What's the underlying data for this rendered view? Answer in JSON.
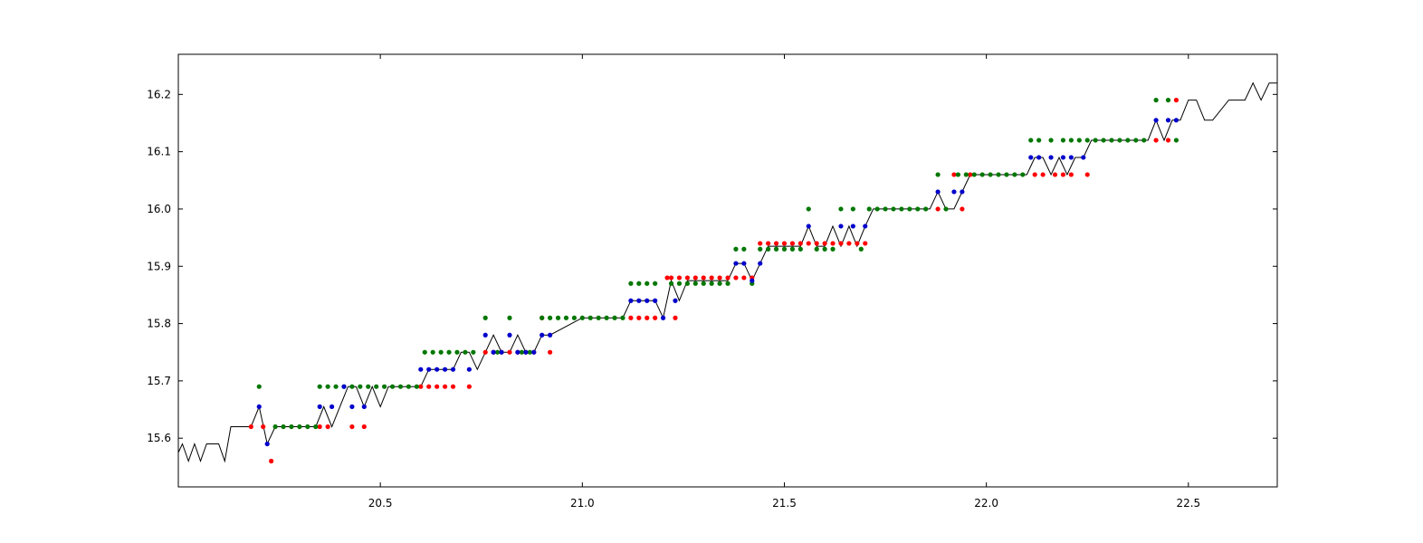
{
  "chart_data": {
    "type": "line",
    "title": "",
    "xlabel": "",
    "ylabel": "",
    "xlim": [
      20.0,
      22.72
    ],
    "ylim": [
      15.515,
      16.27
    ],
    "grid": false,
    "legend": "none",
    "x_ticks": [
      20.5,
      21.0,
      21.5,
      22.0,
      22.5
    ],
    "x_tick_labels": [
      "20.5",
      "21.0",
      "21.5",
      "22.0",
      "22.5"
    ],
    "y_ticks": [
      15.6,
      15.7,
      15.8,
      15.9,
      16.0,
      16.1,
      16.2
    ],
    "y_tick_labels": [
      "15.6",
      "15.7",
      "15.8",
      "15.9",
      "16.0",
      "16.1",
      "16.2"
    ],
    "colors": {
      "line": "#000000",
      "blue": "#0000cc",
      "red": "#ff0000",
      "green": "#007700"
    },
    "line_series": {
      "x": [
        20.0,
        20.01,
        20.025,
        20.04,
        20.055,
        20.07,
        20.085,
        20.1,
        20.115,
        20.13,
        20.145,
        20.16,
        20.18,
        20.2,
        20.22,
        20.24,
        20.26,
        20.28,
        20.3,
        20.32,
        20.34,
        20.36,
        20.38,
        20.4,
        20.42,
        20.44,
        20.46,
        20.48,
        20.5,
        20.52,
        20.54,
        20.56,
        20.58,
        20.6,
        20.62,
        20.64,
        20.66,
        20.68,
        20.7,
        20.72,
        20.74,
        20.76,
        20.78,
        20.8,
        20.82,
        20.84,
        20.86,
        20.88,
        20.9,
        20.92,
        21.0,
        21.1,
        21.12,
        21.14,
        21.16,
        21.18,
        21.2,
        21.22,
        21.24,
        21.26,
        21.3,
        21.36,
        21.38,
        21.4,
        21.42,
        21.44,
        21.46,
        21.48,
        21.52,
        21.54,
        21.56,
        21.58,
        21.6,
        21.62,
        21.64,
        21.66,
        21.68,
        21.7,
        21.72,
        21.86,
        21.88,
        21.9,
        21.92,
        21.94,
        21.96,
        22.1,
        22.12,
        22.14,
        22.16,
        22.18,
        22.2,
        22.22,
        22.24,
        22.26,
        22.4,
        22.42,
        22.44,
        22.46,
        22.48,
        22.5,
        22.52,
        22.54,
        22.56,
        22.6,
        22.64,
        22.66,
        22.68,
        22.7,
        22.72
      ],
      "y": [
        15.575,
        15.59,
        15.56,
        15.59,
        15.56,
        15.59,
        15.59,
        15.59,
        15.56,
        15.62,
        15.62,
        15.62,
        15.62,
        15.655,
        15.59,
        15.62,
        15.62,
        15.62,
        15.62,
        15.62,
        15.62,
        15.655,
        15.62,
        15.655,
        15.69,
        15.69,
        15.655,
        15.69,
        15.655,
        15.69,
        15.69,
        15.69,
        15.69,
        15.69,
        15.72,
        15.72,
        15.72,
        15.72,
        15.75,
        15.75,
        15.72,
        15.75,
        15.78,
        15.75,
        15.75,
        15.78,
        15.75,
        15.75,
        15.78,
        15.78,
        15.81,
        15.81,
        15.84,
        15.84,
        15.84,
        15.84,
        15.81,
        15.875,
        15.84,
        15.875,
        15.875,
        15.875,
        15.905,
        15.905,
        15.875,
        15.905,
        15.935,
        15.935,
        15.935,
        15.935,
        15.97,
        15.935,
        15.935,
        15.97,
        15.935,
        15.97,
        15.935,
        15.97,
        16.0,
        16.0,
        16.03,
        16.0,
        16.0,
        16.03,
        16.06,
        16.06,
        16.09,
        16.09,
        16.06,
        16.09,
        16.06,
        16.09,
        16.09,
        16.12,
        16.12,
        16.155,
        16.12,
        16.155,
        16.155,
        16.19,
        16.19,
        16.155,
        16.155,
        16.19,
        16.19,
        16.22,
        16.19,
        16.22,
        16.22
      ]
    },
    "blue_points": {
      "x": [
        20.2,
        20.22,
        20.35,
        20.38,
        20.41,
        20.43,
        20.46,
        20.6,
        20.62,
        20.64,
        20.66,
        20.68,
        20.72,
        20.76,
        20.78,
        20.8,
        20.82,
        20.84,
        20.86,
        20.88,
        20.9,
        20.92,
        21.12,
        21.14,
        21.16,
        21.18,
        21.2,
        21.23,
        21.38,
        21.4,
        21.42,
        21.44,
        21.56,
        21.64,
        21.67,
        21.7,
        21.88,
        21.92,
        21.94,
        22.11,
        22.13,
        22.16,
        22.19,
        22.21,
        22.24,
        22.42,
        22.45,
        22.47
      ],
      "y": [
        15.655,
        15.59,
        15.655,
        15.655,
        15.69,
        15.655,
        15.655,
        15.72,
        15.72,
        15.72,
        15.72,
        15.72,
        15.72,
        15.78,
        15.75,
        15.75,
        15.78,
        15.75,
        15.75,
        15.75,
        15.78,
        15.78,
        15.84,
        15.84,
        15.84,
        15.84,
        15.81,
        15.84,
        15.905,
        15.905,
        15.875,
        15.905,
        15.97,
        15.97,
        15.97,
        15.97,
        16.03,
        16.03,
        16.03,
        16.09,
        16.09,
        16.09,
        16.09,
        16.09,
        16.09,
        16.155,
        16.155,
        16.155
      ]
    },
    "red_points": {
      "x": [
        20.18,
        20.21,
        20.23,
        20.35,
        20.37,
        20.43,
        20.46,
        20.6,
        20.62,
        20.64,
        20.66,
        20.68,
        20.72,
        20.76,
        20.78,
        20.8,
        20.82,
        20.84,
        20.86,
        20.88,
        20.9,
        20.92,
        21.12,
        21.14,
        21.16,
        21.18,
        21.21,
        21.23,
        21.22,
        21.24,
        21.26,
        21.28,
        21.3,
        21.32,
        21.34,
        21.36,
        21.38,
        21.4,
        21.42,
        21.44,
        21.46,
        21.48,
        21.5,
        21.52,
        21.54,
        21.56,
        21.58,
        21.6,
        21.62,
        21.64,
        21.66,
        21.68,
        21.7,
        21.88,
        21.92,
        21.94,
        21.96,
        22.12,
        22.14,
        22.17,
        22.19,
        22.21,
        22.25,
        22.42,
        22.45,
        22.47
      ],
      "y": [
        15.62,
        15.62,
        15.56,
        15.62,
        15.62,
        15.62,
        15.62,
        15.69,
        15.69,
        15.69,
        15.69,
        15.69,
        15.69,
        15.75,
        15.75,
        15.75,
        15.75,
        15.75,
        15.75,
        15.75,
        15.81,
        15.75,
        15.81,
        15.81,
        15.81,
        15.81,
        15.88,
        15.81,
        15.88,
        15.88,
        15.88,
        15.88,
        15.88,
        15.88,
        15.88,
        15.88,
        15.88,
        15.88,
        15.88,
        15.94,
        15.94,
        15.94,
        15.94,
        15.94,
        15.94,
        15.94,
        15.94,
        15.94,
        15.94,
        15.94,
        15.94,
        15.94,
        15.94,
        16.0,
        16.06,
        16.0,
        16.06,
        16.06,
        16.06,
        16.06,
        16.06,
        16.06,
        16.06,
        16.12,
        16.12,
        16.19
      ]
    },
    "green_points": {
      "x": [
        20.2,
        20.24,
        20.26,
        20.28,
        20.3,
        20.32,
        20.34,
        20.35,
        20.37,
        20.39,
        20.41,
        20.43,
        20.45,
        20.47,
        20.49,
        20.51,
        20.53,
        20.55,
        20.57,
        20.59,
        20.61,
        20.63,
        20.65,
        20.67,
        20.69,
        20.71,
        20.73,
        20.76,
        20.79,
        20.82,
        20.85,
        20.87,
        20.9,
        20.92,
        20.94,
        20.96,
        20.98,
        21.0,
        21.02,
        21.04,
        21.06,
        21.08,
        21.1,
        21.12,
        21.14,
        21.16,
        21.18,
        21.22,
        21.24,
        21.26,
        21.28,
        21.3,
        21.32,
        21.34,
        21.36,
        21.38,
        21.4,
        21.42,
        21.44,
        21.46,
        21.48,
        21.5,
        21.52,
        21.54,
        21.56,
        21.58,
        21.6,
        21.62,
        21.64,
        21.67,
        21.69,
        21.71,
        21.73,
        21.75,
        21.77,
        21.79,
        21.81,
        21.83,
        21.85,
        21.88,
        21.9,
        21.93,
        21.95,
        21.97,
        21.99,
        22.01,
        22.03,
        22.05,
        22.07,
        22.09,
        22.11,
        22.13,
        22.16,
        22.19,
        22.21,
        22.23,
        22.25,
        22.27,
        22.29,
        22.31,
        22.33,
        22.35,
        22.37,
        22.39,
        22.42,
        22.45,
        22.47
      ],
      "y": [
        15.69,
        15.62,
        15.62,
        15.62,
        15.62,
        15.62,
        15.62,
        15.69,
        15.69,
        15.69,
        15.69,
        15.69,
        15.69,
        15.69,
        15.69,
        15.69,
        15.69,
        15.69,
        15.69,
        15.69,
        15.75,
        15.75,
        15.75,
        15.75,
        15.75,
        15.75,
        15.75,
        15.81,
        15.75,
        15.81,
        15.75,
        15.75,
        15.81,
        15.81,
        15.81,
        15.81,
        15.81,
        15.81,
        15.81,
        15.81,
        15.81,
        15.81,
        15.81,
        15.87,
        15.87,
        15.87,
        15.87,
        15.87,
        15.87,
        15.87,
        15.87,
        15.87,
        15.87,
        15.87,
        15.87,
        15.93,
        15.93,
        15.87,
        15.93,
        15.93,
        15.93,
        15.93,
        15.93,
        15.93,
        16.0,
        15.93,
        15.93,
        15.93,
        16.0,
        16.0,
        15.93,
        16.0,
        16.0,
        16.0,
        16.0,
        16.0,
        16.0,
        16.0,
        16.0,
        16.06,
        16.0,
        16.06,
        16.06,
        16.06,
        16.06,
        16.06,
        16.06,
        16.06,
        16.06,
        16.06,
        16.12,
        16.12,
        16.12,
        16.12,
        16.12,
        16.12,
        16.12,
        16.12,
        16.12,
        16.12,
        16.12,
        16.12,
        16.12,
        16.12,
        16.19,
        16.19,
        16.12
      ]
    }
  }
}
